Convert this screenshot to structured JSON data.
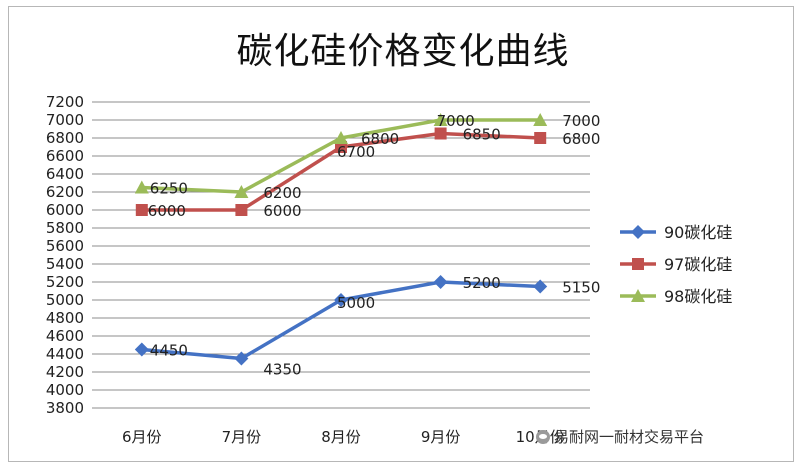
{
  "chart_data": {
    "type": "line",
    "title": "碳化硅价格变化曲线",
    "categories": [
      "6月份",
      "7月份",
      "8月份",
      "9月份",
      "10月份"
    ],
    "ylim": [
      3800,
      7200
    ],
    "ytick_step": 200,
    "grid": true,
    "legend_position": "right",
    "series": [
      {
        "name": "90碳化硅",
        "color": "#4472C4",
        "marker": "diamond",
        "values": [
          4450,
          4350,
          5000,
          5200,
          5150
        ]
      },
      {
        "name": "97碳化硅",
        "color": "#C0504D",
        "marker": "square",
        "values": [
          6000,
          6000,
          6700,
          6850,
          6800
        ]
      },
      {
        "name": "98碳化硅",
        "color": "#9BBB59",
        "marker": "triangle",
        "values": [
          6250,
          6200,
          6800,
          7000,
          7000
        ]
      }
    ]
  },
  "watermark": {
    "text": "易耐网一耐材交易平台",
    "icon": "wechat-icon"
  }
}
